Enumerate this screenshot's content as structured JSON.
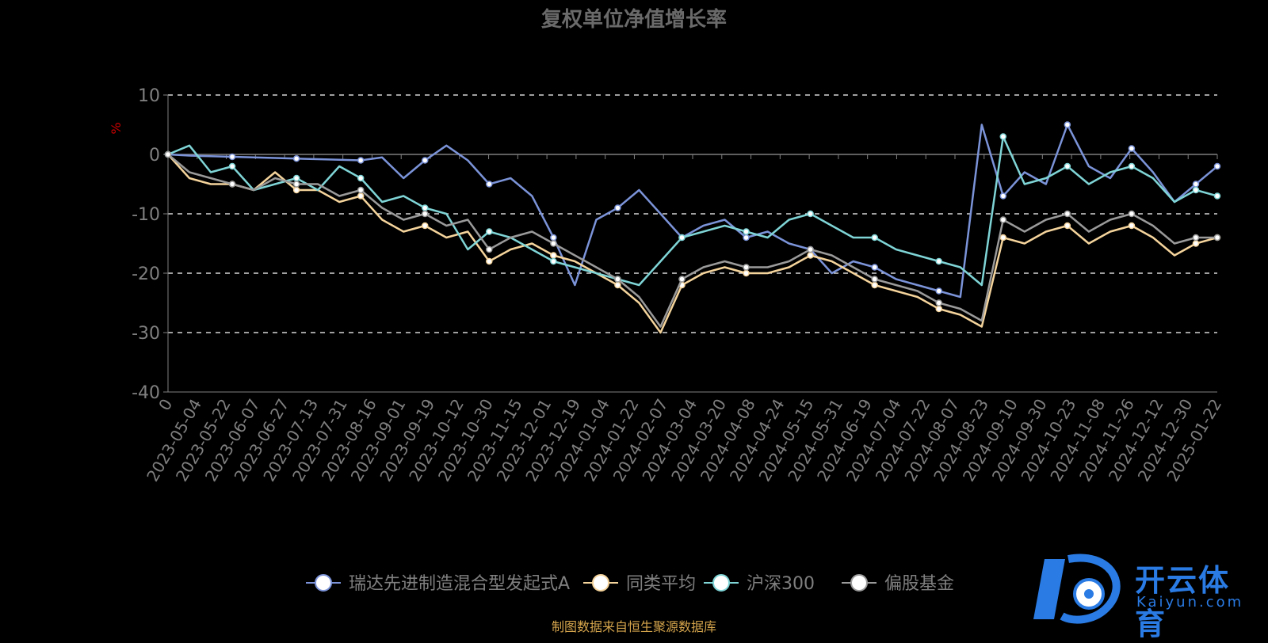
{
  "header": {
    "title": "复权单位净值增长率"
  },
  "footer": {
    "source": "制图数据来自恒生聚源数据库"
  },
  "watermark": {
    "cn": "开云体育",
    "en": "Kaiyun.com"
  },
  "colors": {
    "background": "#000000",
    "grid": "#ffffff",
    "axis": "#7f7f7f",
    "tick": "#7f7f7f",
    "ylabel": "#cc0000",
    "footer": "#d4a44c",
    "logo": "#2a7be4"
  },
  "chart_data": {
    "type": "line",
    "ylabel": "%",
    "ylim": [
      -40,
      10
    ],
    "yticks": [
      10,
      0,
      -10,
      -20,
      -30,
      -40
    ],
    "grid": "horizontal-dashed",
    "legend_position": "bottom-center",
    "x_tick_labels": [
      "0",
      "2023-05-04",
      "2023-05-22",
      "2023-06-07",
      "2023-06-27",
      "2023-07-13",
      "2023-07-31",
      "2023-08-16",
      "2023-09-01",
      "2023-09-19",
      "2023-10-12",
      "2023-10-30",
      "2023-11-15",
      "2023-12-01",
      "2023-12-19",
      "2024-01-04",
      "2024-01-22",
      "2024-02-07",
      "2024-03-04",
      "2024-03-20",
      "2024-04-08",
      "2024-04-24",
      "2024-05-15",
      "2024-05-31",
      "2024-06-19",
      "2024-07-04",
      "2024-07-22",
      "2024-08-07",
      "2024-08-23",
      "2024-09-10",
      "2024-09-30",
      "2024-10-23",
      "2024-11-08",
      "2024-11-26",
      "2024-12-12",
      "2024-12-30",
      "2025-01-22"
    ],
    "series": [
      {
        "name": "瑞达先进制造混合型发起式A",
        "color": "#7b93d8",
        "values": [
          0,
          -0.2,
          -0.3,
          -0.4,
          -0.5,
          -0.6,
          -0.7,
          -0.8,
          -0.9,
          -1.0,
          -0.5,
          -4,
          -1,
          1.5,
          -1,
          -5,
          -4,
          -7,
          -14,
          -22,
          -11,
          -9,
          -6,
          -10,
          -14,
          -12,
          -11,
          -14,
          -13,
          -15,
          -16,
          -20,
          -18,
          -19,
          -21,
          -22,
          -23,
          -24,
          5,
          -7,
          -3,
          -5,
          5,
          -2,
          -4,
          1,
          -3,
          -8,
          -5,
          -2
        ]
      },
      {
        "name": "同类平均",
        "color": "#f5d49c",
        "values": [
          0,
          -4,
          -5,
          -5,
          -6,
          -3,
          -6,
          -6,
          -8,
          -7,
          -11,
          -13,
          -12,
          -14,
          -13,
          -18,
          -16,
          -15,
          -17,
          -18,
          -20,
          -22,
          -25,
          -30,
          -22,
          -20,
          -19,
          -20,
          -20,
          -19,
          -17,
          -18,
          -20,
          -22,
          -23,
          -24,
          -26,
          -27,
          -29,
          -14,
          -15,
          -13,
          -12,
          -15,
          -13,
          -12,
          -14,
          -17,
          -15,
          -14
        ]
      },
      {
        "name": "沪深300",
        "color": "#7fd4d6",
        "values": [
          0,
          1.5,
          -3,
          -2,
          -6,
          -5,
          -4,
          -6,
          -2,
          -4,
          -8,
          -7,
          -9,
          -10,
          -16,
          -13,
          -14,
          -16,
          -18,
          -19,
          -20,
          -21,
          -22,
          -18,
          -14,
          -13,
          -12,
          -13,
          -14,
          -11,
          -10,
          -12,
          -14,
          -14,
          -16,
          -17,
          -18,
          -19,
          -22,
          3,
          -5,
          -4,
          -2,
          -5,
          -3,
          -2,
          -4,
          -8,
          -6,
          -7
        ]
      },
      {
        "name": "偏股基金",
        "color": "#9a9a9a",
        "values": [
          0,
          -3,
          -4,
          -5,
          -6,
          -4,
          -5,
          -5,
          -7,
          -6,
          -9,
          -11,
          -10,
          -12,
          -11,
          -16,
          -14,
          -13,
          -15,
          -17,
          -19,
          -21,
          -24,
          -29,
          -21,
          -19,
          -18,
          -19,
          -19,
          -18,
          -16,
          -17,
          -19,
          -21,
          -22,
          -23,
          -25,
          -26,
          -28,
          -11,
          -13,
          -11,
          -10,
          -13,
          -11,
          -10,
          -12,
          -15,
          -14,
          -14
        ]
      }
    ]
  }
}
